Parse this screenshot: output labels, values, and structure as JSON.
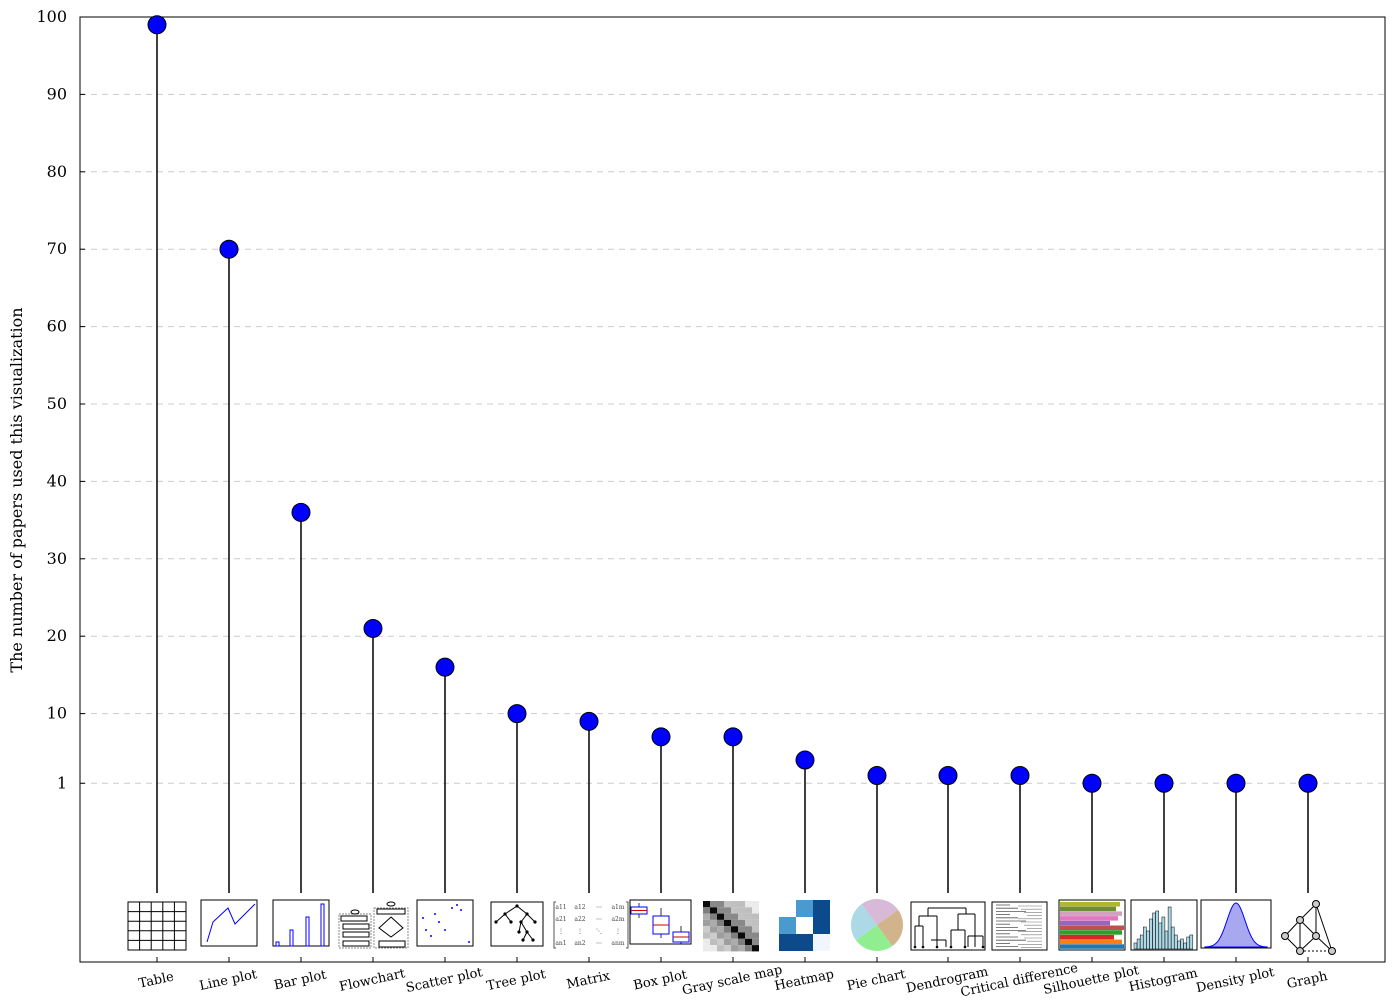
{
  "chart_data": {
    "type": "lollipop",
    "ylabel": "The number of papers used this visualization",
    "yticks": [
      "1",
      "10",
      "20",
      "30",
      "40",
      "50",
      "60",
      "70",
      "80",
      "90",
      "100"
    ],
    "ytick_values": [
      1,
      10,
      20,
      30,
      40,
      50,
      60,
      70,
      80,
      90,
      100
    ],
    "ylim": [
      -10,
      100
    ],
    "grid": "horizontal dashed",
    "categories": [
      "Table",
      "Line plot",
      "Bar plot",
      "Flowchart",
      "Scatter plot",
      "Tree plot",
      "Matrix",
      "Box plot",
      "Gray scale map",
      "Heatmap",
      "Pie chart",
      "Dendrogram",
      "Critical difference",
      "Silhouette plot",
      "Histogram",
      "Density plot",
      "Graph"
    ],
    "values": [
      99,
      70,
      36,
      21,
      16,
      10,
      9,
      7,
      7,
      4,
      2,
      2,
      2,
      1,
      1,
      1,
      1
    ],
    "icons": [
      "table-thumbnail",
      "line-plot-thumbnail",
      "bar-plot-thumbnail",
      "flowchart-thumbnail",
      "scatter-plot-thumbnail",
      "tree-plot-thumbnail",
      "matrix-thumbnail",
      "box-plot-thumbnail",
      "gray-scale-map-thumbnail",
      "heatmap-thumbnail",
      "pie-chart-thumbnail",
      "dendrogram-thumbnail",
      "critical-difference-thumbnail",
      "silhouette-plot-thumbnail",
      "histogram-thumbnail",
      "density-plot-thumbnail",
      "graph-thumbnail"
    ],
    "colors": {
      "marker": "#0000ff",
      "stem": "#000000",
      "grid": "#cccccc"
    }
  }
}
